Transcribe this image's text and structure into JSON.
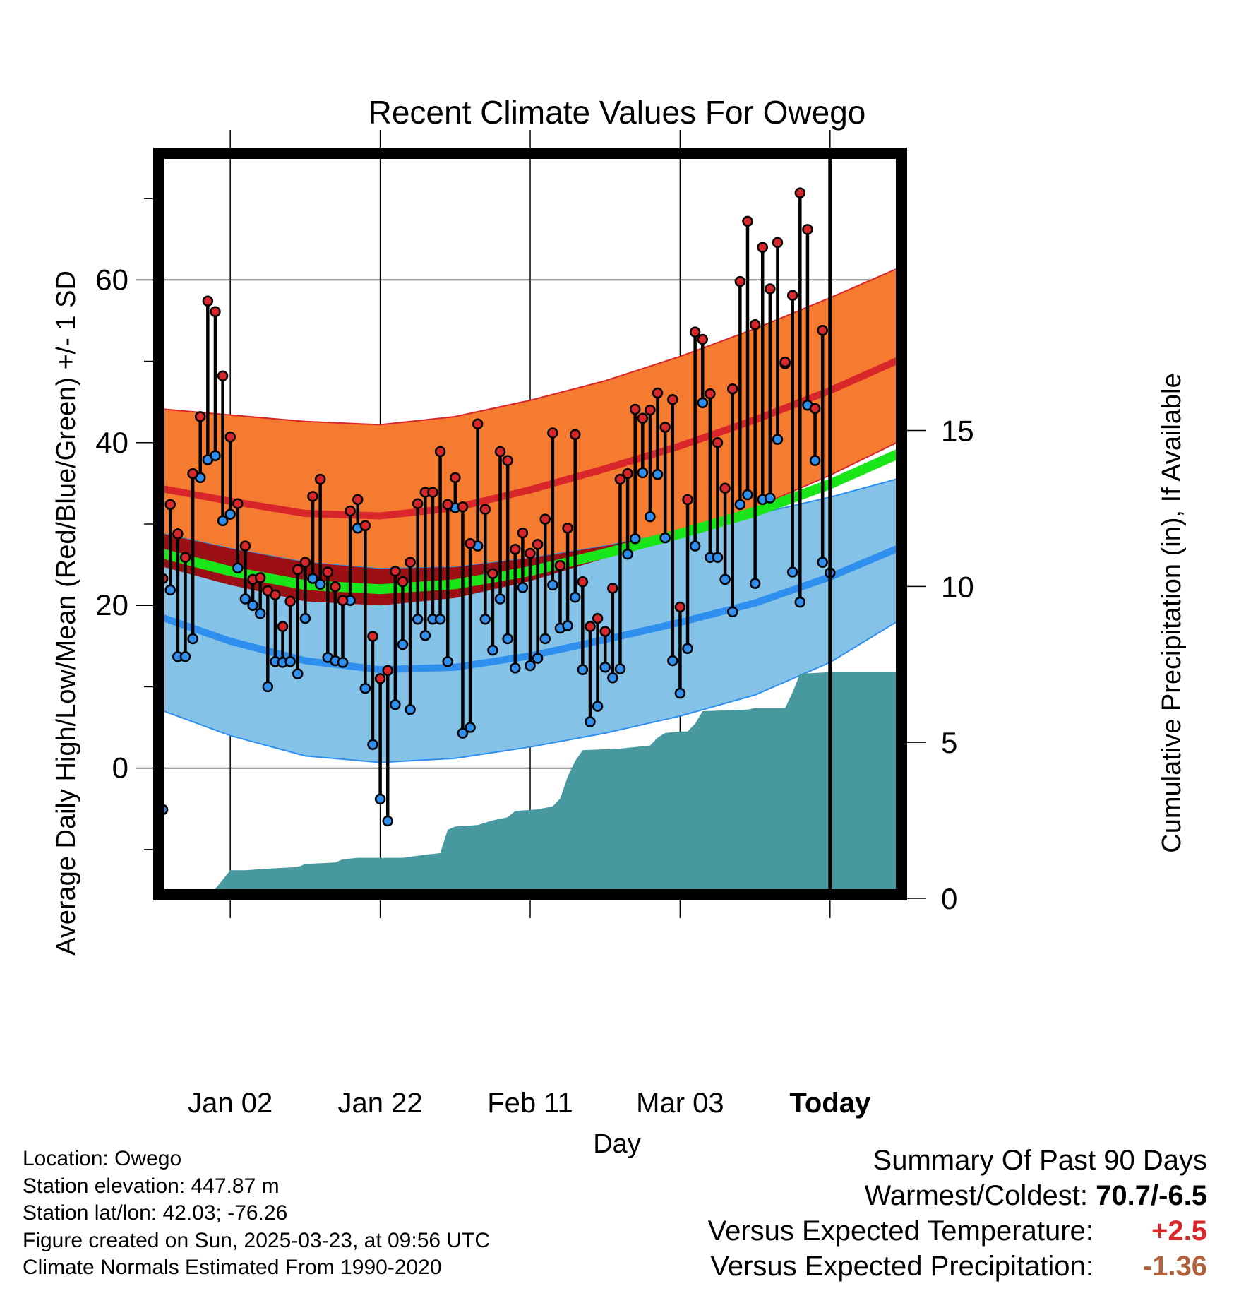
{
  "chart_data": {
    "type": "line",
    "title": "Recent Climate Values For Owego",
    "xlabel": "Day",
    "ylabel": "Average Daily High/Low/Mean (Red/Blue/Green) +/- 1 SD",
    "y2label": "Cumulative Precipitation (in), If Available",
    "x_tick_labels": [
      "Jan 02",
      "Jan 22",
      "Feb 11",
      "Mar 03",
      "Today"
    ],
    "x_tick_days": [
      10,
      30,
      50,
      70,
      90
    ],
    "xlim": [
      0,
      100
    ],
    "ylim": [
      -16,
      76
    ],
    "y_ticks": [
      0,
      20,
      40,
      60
    ],
    "y2lim": [
      0,
      24
    ],
    "y2_ticks": [
      0,
      5,
      10,
      15
    ],
    "grid": true,
    "today_day": 90,
    "today_label": [
      "90",
      "Days"
    ],
    "colors": {
      "high_band": "#f47b2f",
      "high_mean": "#d9262b",
      "low_band": "#84c2e8",
      "low_mean": "#2e8fef",
      "overlap_band": "#9b0f15",
      "mean": "#19e619",
      "precip": "#48989f",
      "obs_high": "#d9262b",
      "obs_low": "#2e8fef"
    },
    "normal_high_mean": [
      [
        0,
        34.5
      ],
      [
        10,
        32.8
      ],
      [
        20,
        31.3
      ],
      [
        30,
        31.0
      ],
      [
        40,
        32.0
      ],
      [
        50,
        34.2
      ],
      [
        60,
        36.8
      ],
      [
        70,
        39.6
      ],
      [
        80,
        42.8
      ],
      [
        90,
        46.4
      ],
      [
        100,
        50.5
      ]
    ],
    "normal_high_upper": [
      [
        0,
        44.2
      ],
      [
        10,
        43.4
      ],
      [
        20,
        42.6
      ],
      [
        30,
        42.2
      ],
      [
        40,
        43.2
      ],
      [
        50,
        45.2
      ],
      [
        60,
        47.6
      ],
      [
        70,
        50.6
      ],
      [
        80,
        54.0
      ],
      [
        90,
        57.8
      ],
      [
        100,
        61.8
      ]
    ],
    "normal_high_lower": [
      [
        0,
        25.0
      ],
      [
        10,
        22.5
      ],
      [
        20,
        20.5
      ],
      [
        30,
        20.0
      ],
      [
        40,
        20.9
      ],
      [
        50,
        23.0
      ],
      [
        60,
        25.8
      ],
      [
        70,
        28.8
      ],
      [
        80,
        32.0
      ],
      [
        90,
        36.0
      ],
      [
        100,
        40.5
      ]
    ],
    "normal_low_mean": [
      [
        0,
        18.8
      ],
      [
        10,
        15.6
      ],
      [
        20,
        13.2
      ],
      [
        30,
        12.1
      ],
      [
        40,
        12.4
      ],
      [
        50,
        13.8
      ],
      [
        60,
        15.8
      ],
      [
        70,
        17.9
      ],
      [
        80,
        20.3
      ],
      [
        90,
        23.5
      ],
      [
        100,
        27.4
      ]
    ],
    "normal_low_upper": [
      [
        0,
        29.0
      ],
      [
        10,
        27.0
      ],
      [
        20,
        25.3
      ],
      [
        30,
        24.5
      ],
      [
        40,
        24.7
      ],
      [
        50,
        25.8
      ],
      [
        60,
        27.3
      ],
      [
        70,
        29.1
      ],
      [
        80,
        31.2
      ],
      [
        90,
        33.3
      ],
      [
        100,
        35.8
      ]
    ],
    "normal_low_lower": [
      [
        0,
        7.4
      ],
      [
        10,
        4.0
      ],
      [
        20,
        1.5
      ],
      [
        30,
        0.7
      ],
      [
        40,
        1.2
      ],
      [
        50,
        2.6
      ],
      [
        60,
        4.3
      ],
      [
        70,
        6.4
      ],
      [
        80,
        9.0
      ],
      [
        90,
        13.0
      ],
      [
        100,
        18.6
      ]
    ],
    "normal_mean": [
      [
        0,
        26.6
      ],
      [
        10,
        24.2
      ],
      [
        20,
        22.5
      ],
      [
        30,
        22.0
      ],
      [
        40,
        22.6
      ],
      [
        50,
        24.2
      ],
      [
        60,
        26.4
      ],
      [
        70,
        28.8
      ],
      [
        80,
        31.5
      ],
      [
        90,
        34.9
      ],
      [
        100,
        39.0
      ]
    ],
    "daily_high": [
      23.3,
      32.4,
      28.8,
      25.9,
      36.2,
      43.2,
      57.4,
      56.1,
      48.2,
      40.7,
      32.5,
      27.3,
      23.2,
      23.4,
      21.8,
      21.3,
      17.4,
      20.5,
      24.4,
      25.3,
      33.4,
      35.5,
      24.1,
      22.3,
      20.6,
      31.6,
      33.0,
      29.8,
      16.2,
      11.0,
      12.0,
      24.2,
      22.9,
      25.3,
      32.5,
      33.9,
      33.9,
      38.9,
      32.4,
      35.7,
      32.1,
      27.6,
      42.3,
      31.8,
      23.9,
      38.9,
      37.8,
      26.9,
      28.9,
      26.4,
      27.5,
      30.6,
      41.2,
      24.9,
      29.5,
      41.0,
      22.9,
      17.4,
      18.4,
      16.8,
      22.1,
      35.5,
      36.2,
      44.1,
      43.0,
      44.0,
      46.1,
      41.9,
      45.3,
      19.8,
      33.0,
      53.6,
      52.7,
      46.0,
      40.0,
      34.4,
      46.6,
      59.8,
      67.2,
      54.5,
      64.0,
      58.9,
      64.6,
      49.9,
      58.1,
      70.7,
      66.2,
      44.2,
      53.8
    ],
    "daily_low": [
      -5.1,
      21.9,
      13.7,
      13.7,
      15.9,
      35.7,
      37.9,
      38.4,
      30.4,
      31.2,
      24.6,
      20.8,
      20.0,
      19.0,
      10.0,
      13.1,
      13.0,
      13.1,
      11.6,
      18.4,
      23.3,
      22.6,
      13.6,
      13.2,
      13.0,
      20.6,
      29.5,
      9.8,
      2.9,
      -3.8,
      -6.5,
      7.8,
      15.2,
      7.2,
      18.3,
      16.3,
      18.3,
      18.3,
      13.1,
      32.0,
      4.3,
      5.0,
      27.3,
      18.3,
      14.5,
      20.8,
      15.9,
      12.3,
      22.2,
      12.6,
      13.5,
      15.9,
      22.5,
      17.2,
      17.5,
      21.0,
      12.1,
      5.7,
      7.6,
      12.4,
      11.1,
      12.2,
      26.3,
      28.2,
      36.3,
      30.9,
      36.1,
      28.3,
      13.2,
      9.2,
      14.7,
      27.3,
      44.9,
      25.9,
      25.9,
      23.2,
      19.2,
      32.4,
      33.6,
      22.7,
      33.0,
      33.2,
      40.4,
      49.7,
      24.1,
      20.4,
      44.6,
      37.8,
      25.3,
      24.0
    ],
    "precip_cumulative": [
      [
        0,
        0.0
      ],
      [
        7,
        0.0
      ],
      [
        10,
        0.9
      ],
      [
        12,
        0.9
      ],
      [
        15,
        0.95
      ],
      [
        19,
        1.0
      ],
      [
        20,
        1.1
      ],
      [
        24,
        1.15
      ],
      [
        25,
        1.25
      ],
      [
        27,
        1.3
      ],
      [
        33,
        1.3
      ],
      [
        36,
        1.4
      ],
      [
        38,
        1.45
      ],
      [
        39,
        2.2
      ],
      [
        40,
        2.3
      ],
      [
        43,
        2.35
      ],
      [
        45,
        2.5
      ],
      [
        47,
        2.6
      ],
      [
        48,
        2.8
      ],
      [
        51,
        2.85
      ],
      [
        53,
        2.95
      ],
      [
        54,
        3.2
      ],
      [
        55,
        3.9
      ],
      [
        56,
        4.4
      ],
      [
        57,
        4.75
      ],
      [
        62,
        4.8
      ],
      [
        66,
        4.9
      ],
      [
        67,
        5.15
      ],
      [
        68,
        5.3
      ],
      [
        70,
        5.35
      ],
      [
        71,
        5.35
      ],
      [
        72,
        5.6
      ],
      [
        73,
        6.0
      ],
      [
        79,
        6.05
      ],
      [
        80,
        6.1
      ],
      [
        84,
        6.1
      ],
      [
        85,
        6.6
      ],
      [
        86,
        7.2
      ],
      [
        90,
        7.25
      ],
      [
        100,
        7.25
      ]
    ]
  },
  "info": {
    "location": "Location: Owego",
    "elevation": "Station elevation: 447.87 m",
    "latlon": "Station lat/lon: 42.03; -76.26",
    "created": "Figure created on Sun, 2025-03-23, at 09:56 UTC",
    "normals": "Climate Normals Estimated From 1990-2020"
  },
  "summary": {
    "title": "Summary Of Past 90 Days",
    "warmest_label": "Warmest/Coldest:",
    "warmest_value": "70.7/-6.5",
    "temp_label": "Versus Expected Temperature:",
    "temp_value": "+2.5",
    "temp_color": "#d9262b",
    "precip_label": "Versus Expected Precipitation:",
    "precip_value": "-1.36",
    "precip_color": "#b0603a"
  }
}
